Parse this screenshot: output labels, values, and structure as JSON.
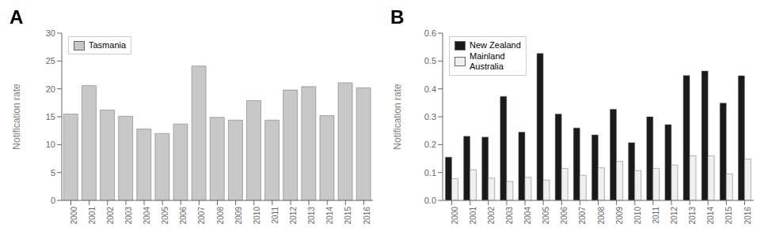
{
  "chart_data": [
    {
      "type": "bar",
      "title": "A",
      "ylabel": "Notification rate",
      "categories": [
        2000,
        2001,
        2002,
        2003,
        2004,
        2005,
        2006,
        2007,
        2008,
        2009,
        2010,
        2011,
        2012,
        2013,
        2014,
        2015,
        2016
      ],
      "series": [
        {
          "name": "Tasmania",
          "color": "#c8c8c8",
          "values": [
            15.5,
            20.6,
            16.2,
            15.1,
            12.8,
            12.0,
            13.7,
            24.1,
            14.9,
            14.4,
            17.9,
            14.4,
            19.8,
            20.4,
            15.2,
            21.1,
            20.2
          ]
        }
      ],
      "ylim": [
        0,
        30
      ],
      "yticks": [
        0,
        5,
        10,
        15,
        20,
        25,
        30
      ],
      "grid": false,
      "legend": "upper left"
    },
    {
      "type": "bar",
      "title": "B",
      "ylabel": "Notification rate",
      "categories": [
        2000,
        2001,
        2002,
        2003,
        2004,
        2005,
        2006,
        2007,
        2008,
        2009,
        2010,
        2011,
        2012,
        2013,
        2014,
        2015,
        2016
      ],
      "series": [
        {
          "name": "New Zealand",
          "color": "#1a1a1a",
          "values": [
            0.155,
            0.23,
            0.227,
            0.373,
            0.245,
            0.527,
            0.31,
            0.26,
            0.235,
            0.327,
            0.207,
            0.3,
            0.272,
            0.448,
            0.464,
            0.349,
            0.447
          ]
        },
        {
          "name": "Mainland\nAustralia",
          "color": "#f0f0f0",
          "values": [
            0.078,
            0.11,
            0.08,
            0.068,
            0.083,
            0.073,
            0.115,
            0.09,
            0.117,
            0.14,
            0.107,
            0.115,
            0.127,
            0.16,
            0.16,
            0.095,
            0.148
          ]
        }
      ],
      "ylim": [
        0,
        0.6
      ],
      "yticks": [
        {
          "value": 0,
          "label": "0.0"
        },
        0.1,
        0.2,
        0.3,
        0.4,
        0.5,
        0.6
      ],
      "grid": false,
      "legend": "upper left"
    }
  ]
}
